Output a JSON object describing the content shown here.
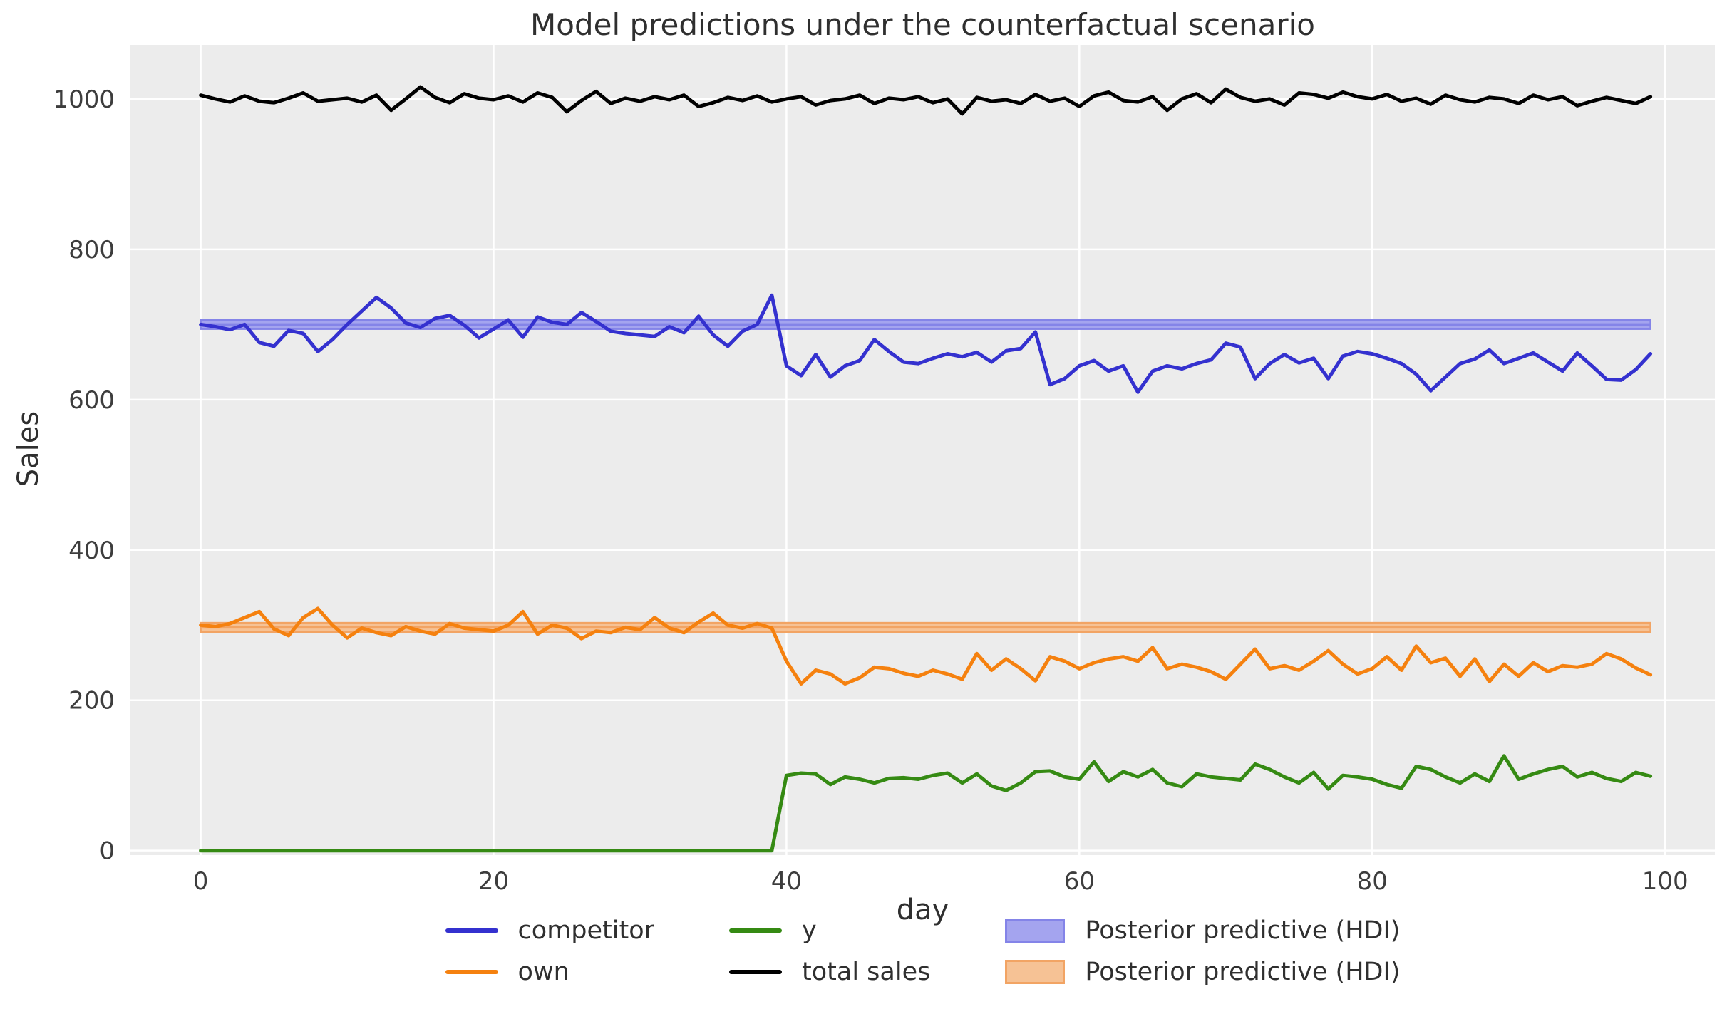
{
  "chart_data": {
    "type": "line",
    "title": "Model predictions under the counterfactual scenario",
    "xlabel": "day",
    "ylabel": "Sales",
    "grid": true,
    "legend_position": "bottom",
    "plot_bg_color": "#ececec",
    "grid_color": "#ffffff",
    "text_color": "#2f2f2f",
    "tick_color": "#3d3d3d",
    "xlim": [
      -4.8,
      103.4
    ],
    "ylim": [
      -6,
      1072
    ],
    "xticks": [
      0,
      20,
      40,
      60,
      80,
      100
    ],
    "yticks": [
      0,
      200,
      400,
      600,
      800,
      1000
    ],
    "x": [
      0,
      1,
      2,
      3,
      4,
      5,
      6,
      7,
      8,
      9,
      10,
      11,
      12,
      13,
      14,
      15,
      16,
      17,
      18,
      19,
      20,
      21,
      22,
      23,
      24,
      25,
      26,
      27,
      28,
      29,
      30,
      31,
      32,
      33,
      34,
      35,
      36,
      37,
      38,
      39,
      40,
      41,
      42,
      43,
      44,
      45,
      46,
      47,
      48,
      49,
      50,
      51,
      52,
      53,
      54,
      55,
      56,
      57,
      58,
      59,
      60,
      61,
      62,
      63,
      64,
      65,
      66,
      67,
      68,
      69,
      70,
      71,
      72,
      73,
      74,
      75,
      76,
      77,
      78,
      79,
      80,
      81,
      82,
      83,
      84,
      85,
      86,
      87,
      88,
      89,
      90,
      91,
      92,
      93,
      94,
      95,
      96,
      97,
      98,
      99
    ],
    "series": [
      {
        "name": "competitor",
        "color": "#3431cf",
        "values": [
          700,
          697,
          693,
          700,
          676,
          671,
          692,
          688,
          664,
          680,
          700,
          718,
          736,
          722,
          702,
          696,
          708,
          712,
          699,
          682,
          694,
          706,
          683,
          710,
          703,
          700,
          716,
          704,
          691,
          688,
          686,
          684,
          697,
          689,
          711,
          686,
          671,
          691,
          700,
          739,
          645,
          632,
          660,
          630,
          645,
          652,
          680,
          664,
          650,
          648,
          655,
          661,
          657,
          663,
          650,
          665,
          668,
          690,
          620,
          628,
          645,
          652,
          638,
          645,
          610,
          638,
          645,
          641,
          648,
          653,
          675,
          670,
          628,
          648,
          660,
          649,
          655,
          628,
          658,
          664,
          661,
          655,
          648,
          634,
          612,
          630,
          648,
          654,
          666,
          648,
          655,
          662,
          650,
          638,
          662,
          645,
          627,
          626,
          640,
          661
        ]
      },
      {
        "name": "own",
        "color": "#f5810f",
        "values": [
          300,
          298,
          302,
          310,
          318,
          295,
          286,
          310,
          322,
          300,
          283,
          296,
          290,
          286,
          298,
          292,
          288,
          302,
          296,
          294,
          292,
          300,
          318,
          288,
          300,
          296,
          282,
          292,
          290,
          297,
          294,
          310,
          296,
          290,
          304,
          316,
          300,
          296,
          302,
          296,
          252,
          222,
          240,
          235,
          222,
          230,
          244,
          242,
          236,
          232,
          240,
          235,
          228,
          262,
          240,
          255,
          242,
          226,
          258,
          252,
          242,
          250,
          255,
          258,
          252,
          270,
          242,
          248,
          244,
          238,
          228,
          248,
          268,
          242,
          246,
          240,
          252,
          266,
          248,
          235,
          242,
          258,
          240,
          272,
          250,
          256,
          232,
          255,
          225,
          248,
          232,
          250,
          238,
          246,
          244,
          248,
          262,
          255,
          243,
          234
        ]
      },
      {
        "name": "y",
        "color": "#358a13",
        "values": [
          0,
          0,
          0,
          0,
          0,
          0,
          0,
          0,
          0,
          0,
          0,
          0,
          0,
          0,
          0,
          0,
          0,
          0,
          0,
          0,
          0,
          0,
          0,
          0,
          0,
          0,
          0,
          0,
          0,
          0,
          0,
          0,
          0,
          0,
          0,
          0,
          0,
          0,
          0,
          0,
          100,
          103,
          102,
          88,
          98,
          95,
          90,
          96,
          97,
          95,
          100,
          103,
          90,
          102,
          86,
          80,
          90,
          105,
          106,
          98,
          95,
          118,
          92,
          105,
          98,
          108,
          90,
          85,
          102,
          98,
          96,
          94,
          115,
          108,
          98,
          90,
          104,
          82,
          100,
          98,
          95,
          88,
          83,
          112,
          108,
          98,
          90,
          102,
          92,
          126,
          95,
          102,
          108,
          112,
          98,
          104,
          96,
          92,
          104,
          99
        ]
      },
      {
        "name": "total sales",
        "color": "#000000",
        "values": [
          1005,
          1000,
          996,
          1004,
          997,
          995,
          1001,
          1008,
          997,
          999,
          1001,
          996,
          1005,
          985,
          1000,
          1016,
          1002,
          995,
          1007,
          1001,
          999,
          1004,
          996,
          1008,
          1002,
          983,
          998,
          1010,
          994,
          1001,
          997,
          1003,
          999,
          1005,
          990,
          995,
          1002,
          998,
          1004,
          996,
          1000,
          1003,
          992,
          998,
          1000,
          1005,
          994,
          1001,
          999,
          1003,
          995,
          1000,
          980,
          1002,
          997,
          999,
          994,
          1006,
          997,
          1001,
          990,
          1004,
          1009,
          998,
          996,
          1003,
          985,
          1000,
          1007,
          995,
          1013,
          1002,
          997,
          1000,
          992,
          1008,
          1006,
          1001,
          1009,
          1003,
          1000,
          1006,
          997,
          1001,
          993,
          1005,
          999,
          996,
          1002,
          1000,
          994,
          1005,
          999,
          1003,
          991,
          997,
          1002,
          998,
          994,
          1003
        ]
      }
    ],
    "hdi_bands": [
      {
        "label": "Posterior predictive (HDI)",
        "fill": "#a4a4ef",
        "edge": "#8484e8",
        "mean": 700,
        "lo": 694,
        "hi": 706,
        "x_start": 0,
        "x_end": 99
      },
      {
        "label": "Posterior predictive (HDI)",
        "fill": "#f6c295",
        "edge": "#f2a464",
        "mean": 297,
        "lo": 291,
        "hi": 303,
        "x_start": 0,
        "x_end": 99
      }
    ]
  }
}
